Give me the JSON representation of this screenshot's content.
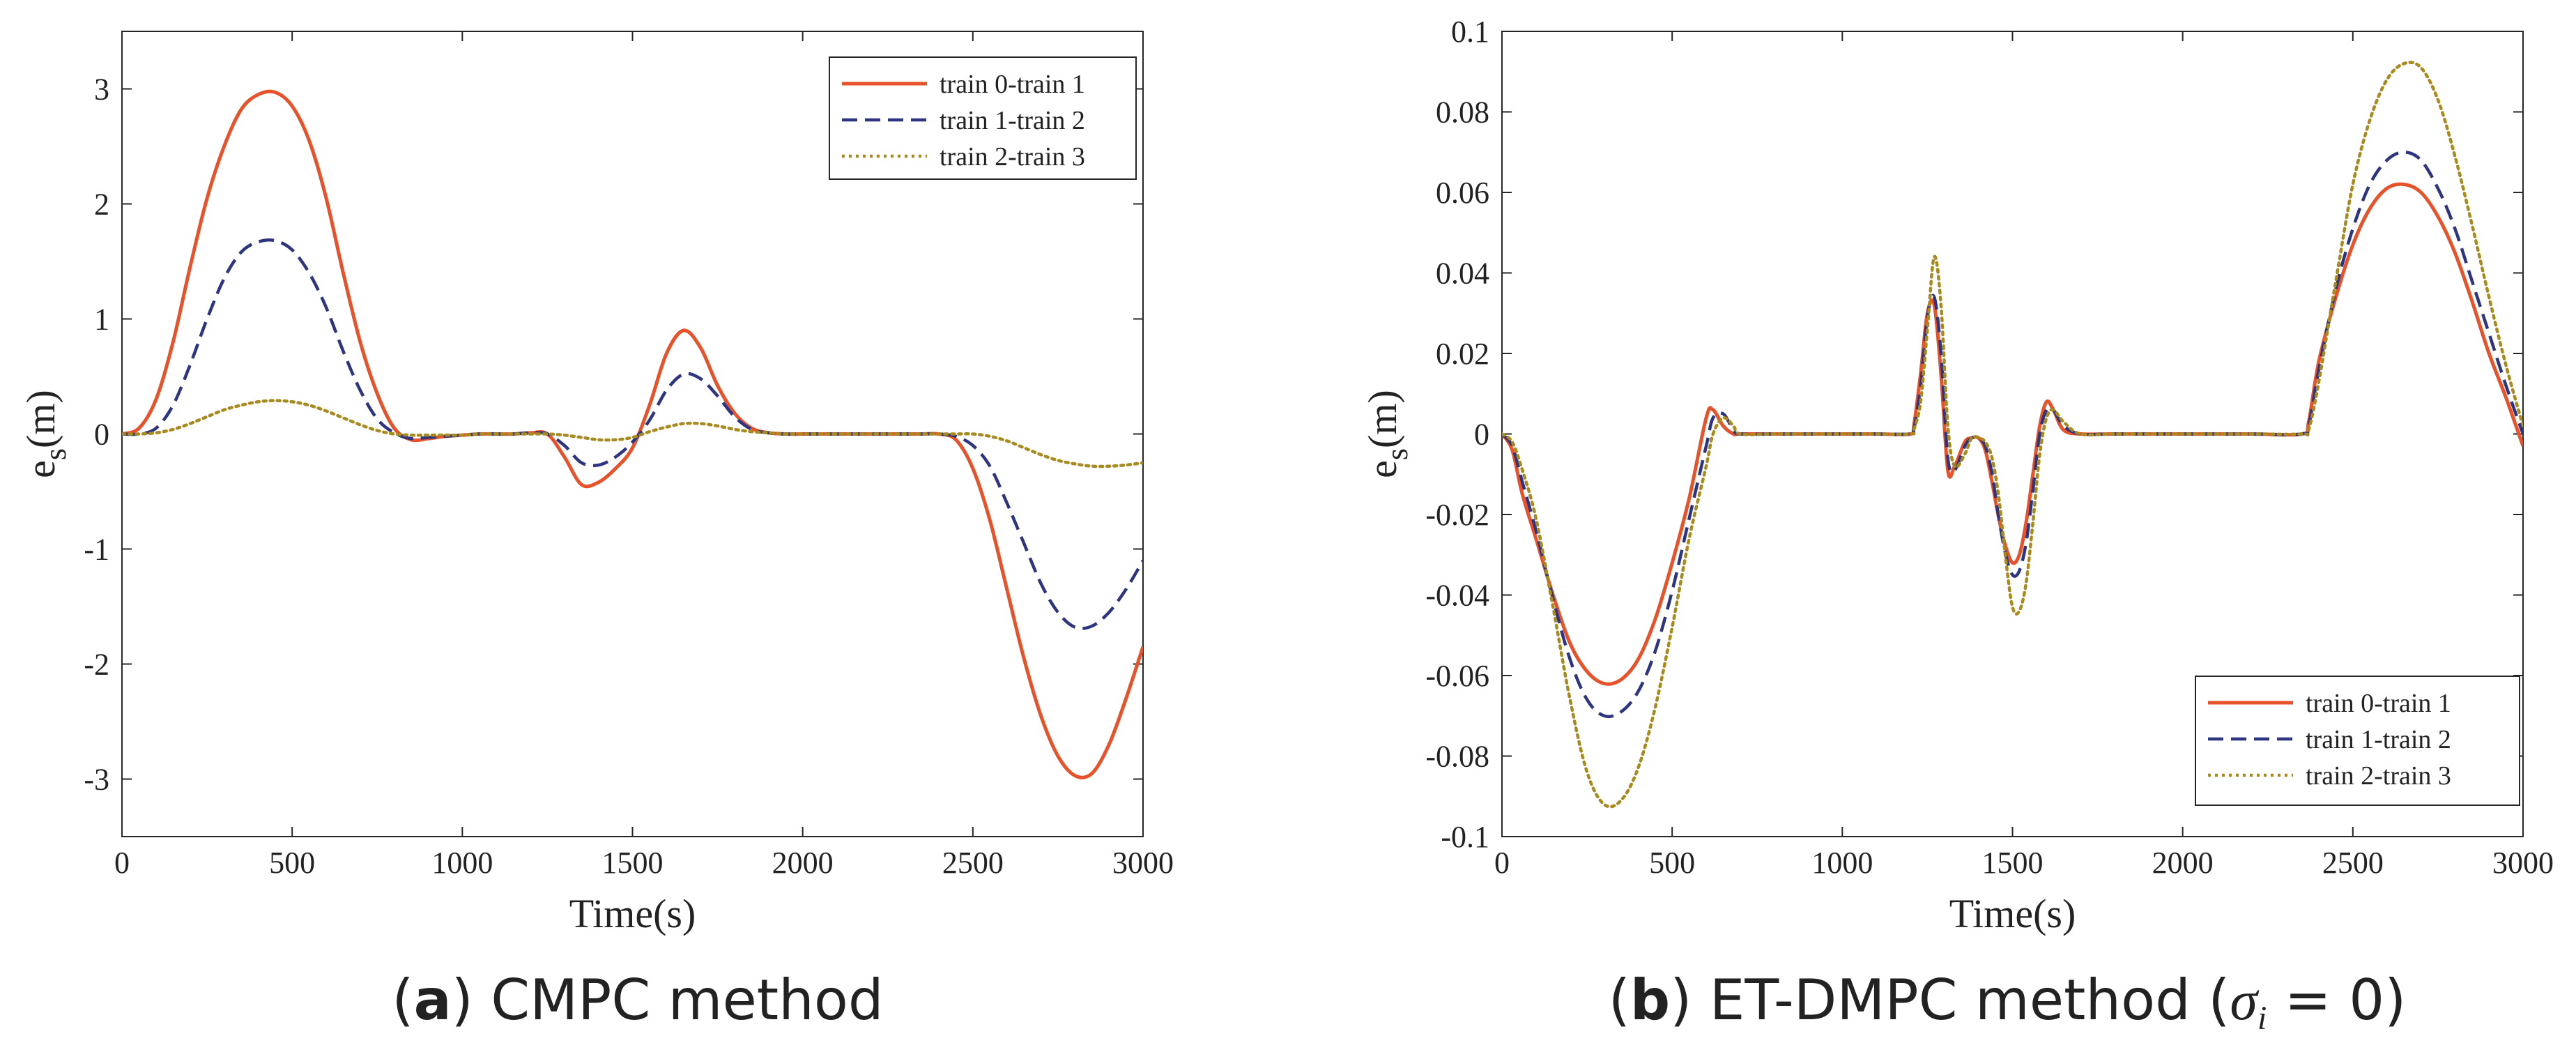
{
  "chart_data": [
    {
      "type": "line",
      "panel_label": "a",
      "caption": "CMPC method",
      "xlabel": "Time(s)",
      "ylabel_main": "e",
      "ylabel_sub": "s",
      "ylabel_unit": "(m)",
      "xlim": [
        0,
        3000
      ],
      "ylim": [
        -3.5,
        3.5
      ],
      "xticks": [
        0,
        500,
        1000,
        1500,
        2000,
        2500,
        3000
      ],
      "yticks": [
        -3,
        -2,
        -1,
        0,
        1,
        2,
        3
      ],
      "ytick_labels": [
        "-3",
        "-2",
        "-1",
        "0",
        "1",
        "2",
        "3"
      ],
      "legend_position": "top-right",
      "series": [
        {
          "name": "train 0-train 1",
          "color": "#e8522a",
          "style": "solid",
          "x": [
            0,
            50,
            100,
            150,
            200,
            250,
            300,
            350,
            400,
            450,
            500,
            550,
            600,
            650,
            700,
            750,
            800,
            850,
            900,
            950,
            1000,
            1050,
            1100,
            1150,
            1200,
            1250,
            1300,
            1350,
            1400,
            1450,
            1500,
            1550,
            1600,
            1650,
            1700,
            1750,
            1800,
            1850,
            1900,
            1950,
            2000,
            2050,
            2100,
            2150,
            2200,
            2250,
            2300,
            2350,
            2400,
            2450,
            2500,
            2550,
            2600,
            2650,
            2700,
            2750,
            2800,
            2850,
            2900,
            2950,
            3000
          ],
          "y": [
            0,
            0.05,
            0.3,
            0.8,
            1.45,
            2.05,
            2.5,
            2.82,
            2.95,
            2.97,
            2.85,
            2.55,
            2.05,
            1.4,
            0.8,
            0.35,
            0.05,
            -0.05,
            -0.04,
            -0.02,
            -0.01,
            0,
            0,
            0,
            0.01,
            0,
            -0.2,
            -0.44,
            -0.42,
            -0.3,
            -0.12,
            0.25,
            0.7,
            0.9,
            0.75,
            0.42,
            0.18,
            0.05,
            0.01,
            0,
            0,
            0,
            0,
            0,
            0,
            0,
            0,
            0,
            0,
            -0.05,
            -0.3,
            -0.75,
            -1.35,
            -1.95,
            -2.45,
            -2.8,
            -2.97,
            -2.95,
            -2.7,
            -2.3,
            -1.85
          ]
        },
        {
          "name": "train 1-train 2",
          "color": "#2e3580",
          "style": "dashed",
          "x": [
            0,
            50,
            100,
            150,
            200,
            250,
            300,
            350,
            400,
            450,
            500,
            550,
            600,
            650,
            700,
            750,
            800,
            850,
            900,
            950,
            1000,
            1050,
            1100,
            1150,
            1200,
            1250,
            1300,
            1350,
            1400,
            1450,
            1500,
            1550,
            1600,
            1650,
            1700,
            1750,
            1800,
            1850,
            1900,
            1950,
            2000,
            2050,
            2100,
            2150,
            2200,
            2250,
            2300,
            2350,
            2400,
            2450,
            2500,
            2550,
            2600,
            2650,
            2700,
            2750,
            2800,
            2850,
            2900,
            2950,
            3000
          ],
          "y": [
            0,
            0,
            0.05,
            0.25,
            0.6,
            1.0,
            1.35,
            1.58,
            1.67,
            1.68,
            1.6,
            1.4,
            1.1,
            0.72,
            0.38,
            0.13,
            0.01,
            -0.04,
            -0.03,
            -0.02,
            -0.01,
            0,
            0,
            0,
            0.01,
            0,
            -0.1,
            -0.25,
            -0.27,
            -0.2,
            -0.07,
            0.12,
            0.38,
            0.52,
            0.48,
            0.33,
            0.15,
            0.04,
            0.01,
            0,
            0,
            0,
            0,
            0,
            0,
            0,
            0,
            0,
            0,
            -0.02,
            -0.1,
            -0.28,
            -0.6,
            -0.95,
            -1.3,
            -1.55,
            -1.68,
            -1.67,
            -1.55,
            -1.35,
            -1.1
          ]
        },
        {
          "name": "train 2-train 3",
          "color": "#a88a1e",
          "style": "dotted",
          "x": [
            0,
            50,
            100,
            150,
            200,
            250,
            300,
            350,
            400,
            450,
            500,
            550,
            600,
            650,
            700,
            750,
            800,
            850,
            900,
            950,
            1000,
            1050,
            1100,
            1150,
            1200,
            1250,
            1300,
            1350,
            1400,
            1450,
            1500,
            1550,
            1600,
            1650,
            1700,
            1750,
            1800,
            1850,
            1900,
            1950,
            2000,
            2050,
            2100,
            2150,
            2200,
            2250,
            2300,
            2350,
            2400,
            2450,
            2500,
            2550,
            2600,
            2650,
            2700,
            2750,
            2800,
            2850,
            2900,
            2950,
            3000
          ],
          "y": [
            0,
            0,
            0.01,
            0.04,
            0.09,
            0.15,
            0.21,
            0.25,
            0.28,
            0.29,
            0.28,
            0.25,
            0.2,
            0.14,
            0.08,
            0.03,
            0,
            -0.01,
            -0.01,
            -0.01,
            -0.01,
            0,
            0,
            0,
            0,
            0,
            -0.01,
            -0.03,
            -0.05,
            -0.05,
            -0.03,
            0.02,
            0.06,
            0.09,
            0.09,
            0.07,
            0.04,
            0.02,
            0.01,
            0,
            0,
            0,
            0,
            0,
            0,
            0,
            0,
            0,
            0,
            0,
            0,
            -0.02,
            -0.06,
            -0.12,
            -0.18,
            -0.23,
            -0.26,
            -0.28,
            -0.28,
            -0.27,
            -0.25
          ]
        }
      ]
    },
    {
      "type": "line",
      "panel_label": "b",
      "caption_prefix": "ET-DMPC method (",
      "caption_sigma": "σ",
      "caption_sigma_sub": "i",
      "caption_suffix": " = 0)",
      "xlabel": "Time(s)",
      "ylabel_main": "e",
      "ylabel_sub": "s",
      "ylabel_unit": "(m)",
      "xlim": [
        0,
        3000
      ],
      "ylim": [
        -0.1,
        0.1
      ],
      "xticks": [
        0,
        500,
        1000,
        1500,
        2000,
        2500,
        3000
      ],
      "yticks": [
        -0.1,
        -0.08,
        -0.06,
        -0.04,
        -0.02,
        0,
        0.02,
        0.04,
        0.06,
        0.08,
        0.1
      ],
      "ytick_labels": [
        "-0.1",
        "-0.08",
        "-0.06",
        "-0.04",
        "-0.02",
        "0",
        "0.02",
        "0.04",
        "0.06",
        "0.08",
        "0.1"
      ],
      "legend_position": "bottom-right",
      "series": [
        {
          "name": "train 0-train 1",
          "color": "#e8522a",
          "style": "solid",
          "x": [
            0,
            30,
            60,
            100,
            150,
            200,
            250,
            300,
            350,
            400,
            450,
            500,
            550,
            600,
            620,
            650,
            680,
            700,
            800,
            900,
            1000,
            1100,
            1200,
            1210,
            1230,
            1250,
            1270,
            1290,
            1310,
            1330,
            1360,
            1380,
            1400,
            1420,
            1440,
            1460,
            1480,
            1500,
            1520,
            1540,
            1560,
            1580,
            1600,
            1620,
            1650,
            1700,
            1800,
            2000,
            2200,
            2350,
            2370,
            2400,
            2450,
            2500,
            2550,
            2600,
            2650,
            2700,
            2750,
            2800,
            2850,
            2900,
            2950,
            3000
          ],
          "y": [
            0,
            -0.004,
            -0.015,
            -0.026,
            -0.04,
            -0.052,
            -0.059,
            -0.062,
            -0.061,
            -0.056,
            -0.046,
            -0.032,
            -0.016,
            0.004,
            0.006,
            0.002,
            0,
            0,
            0,
            0,
            0,
            0,
            0,
            0.002,
            0.015,
            0.03,
            0.032,
            0.015,
            -0.009,
            -0.008,
            -0.002,
            -0.001,
            -0.001,
            -0.004,
            -0.012,
            -0.021,
            -0.028,
            -0.032,
            -0.03,
            -0.022,
            -0.01,
            0.002,
            0.008,
            0.006,
            0.001,
            0,
            0,
            0,
            0,
            0,
            0.003,
            0.018,
            0.034,
            0.047,
            0.056,
            0.061,
            0.062,
            0.06,
            0.054,
            0.045,
            0.033,
            0.02,
            0.009,
            -0.003
          ]
        },
        {
          "name": "train 1-train 2",
          "color": "#2e3580",
          "style": "dashed",
          "x": [
            0,
            30,
            60,
            100,
            150,
            200,
            250,
            300,
            350,
            400,
            450,
            500,
            550,
            600,
            620,
            650,
            680,
            700,
            800,
            900,
            1000,
            1100,
            1200,
            1210,
            1230,
            1250,
            1270,
            1290,
            1310,
            1330,
            1360,
            1380,
            1400,
            1420,
            1440,
            1460,
            1480,
            1500,
            1520,
            1540,
            1560,
            1580,
            1600,
            1620,
            1650,
            1700,
            1800,
            2000,
            2200,
            2350,
            2370,
            2400,
            2450,
            2500,
            2550,
            2600,
            2650,
            2700,
            2750,
            2800,
            2850,
            2900,
            2950,
            3000
          ],
          "y": [
            0,
            -0.003,
            -0.012,
            -0.024,
            -0.041,
            -0.056,
            -0.066,
            -0.07,
            -0.069,
            -0.064,
            -0.054,
            -0.039,
            -0.021,
            -0.003,
            0.004,
            0.005,
            0.001,
            0,
            0,
            0,
            0,
            0,
            0,
            0.001,
            0.012,
            0.029,
            0.034,
            0.02,
            -0.006,
            -0.009,
            -0.003,
            -0.001,
            -0.001,
            -0.003,
            -0.01,
            -0.021,
            -0.03,
            -0.035,
            -0.034,
            -0.027,
            -0.014,
            0,
            0.006,
            0.006,
            0.002,
            0,
            0,
            0,
            0,
            0,
            0.002,
            0.016,
            0.036,
            0.051,
            0.062,
            0.068,
            0.07,
            0.068,
            0.061,
            0.051,
            0.038,
            0.025,
            0.012,
            0
          ]
        },
        {
          "name": "train 2-train 3",
          "color": "#a88a1e",
          "style": "dotted",
          "x": [
            0,
            30,
            60,
            100,
            150,
            200,
            250,
            300,
            350,
            400,
            450,
            500,
            550,
            600,
            620,
            650,
            680,
            700,
            800,
            900,
            1000,
            1100,
            1200,
            1210,
            1230,
            1250,
            1270,
            1290,
            1310,
            1330,
            1360,
            1380,
            1400,
            1420,
            1440,
            1460,
            1480,
            1500,
            1520,
            1540,
            1560,
            1580,
            1600,
            1620,
            1650,
            1700,
            1800,
            2000,
            2200,
            2350,
            2370,
            2400,
            2450,
            2500,
            2550,
            2600,
            2650,
            2700,
            2750,
            2800,
            2850,
            2900,
            2950,
            3000
          ],
          "y": [
            0,
            -0.002,
            -0.009,
            -0.021,
            -0.043,
            -0.066,
            -0.084,
            -0.092,
            -0.091,
            -0.083,
            -0.068,
            -0.048,
            -0.026,
            -0.008,
            0,
            0.004,
            0.002,
            0,
            0,
            0,
            0,
            0,
            0,
            0.001,
            0.008,
            0.026,
            0.044,
            0.032,
            0.002,
            -0.008,
            -0.005,
            -0.001,
            -0.001,
            -0.002,
            -0.006,
            -0.016,
            -0.031,
            -0.043,
            -0.044,
            -0.037,
            -0.022,
            -0.005,
            0.004,
            0.006,
            0.003,
            0,
            0,
            0,
            0,
            0,
            0.001,
            0.013,
            0.038,
            0.062,
            0.078,
            0.088,
            0.092,
            0.091,
            0.083,
            0.069,
            0.052,
            0.034,
            0.017,
            0.002
          ]
        }
      ]
    }
  ]
}
